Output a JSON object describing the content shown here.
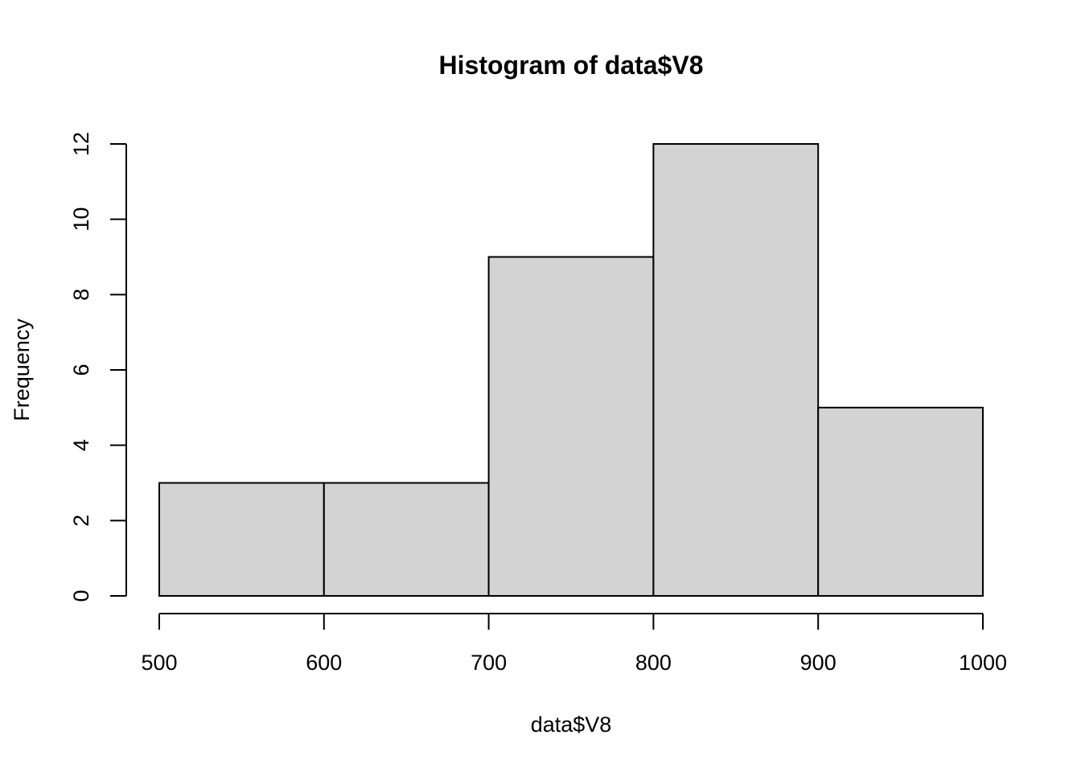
{
  "chart_data": {
    "type": "bar",
    "title": "Histogram of data$V8",
    "xlabel": "data$V8",
    "ylabel": "Frequency",
    "bins": [
      {
        "from": 500,
        "to": 600,
        "count": 3
      },
      {
        "from": 600,
        "to": 700,
        "count": 3
      },
      {
        "from": 700,
        "to": 800,
        "count": 9
      },
      {
        "from": 800,
        "to": 900,
        "count": 12
      },
      {
        "from": 900,
        "to": 1000,
        "count": 5
      }
    ],
    "xticks": [
      500,
      600,
      700,
      800,
      900,
      1000
    ],
    "yticks": [
      0,
      2,
      4,
      6,
      8,
      10,
      12
    ],
    "xlim": [
      500,
      1000
    ],
    "ylim": [
      0,
      12
    ],
    "grid": false,
    "bar_color": "#d3d3d3",
    "edge_color": "#000000"
  }
}
